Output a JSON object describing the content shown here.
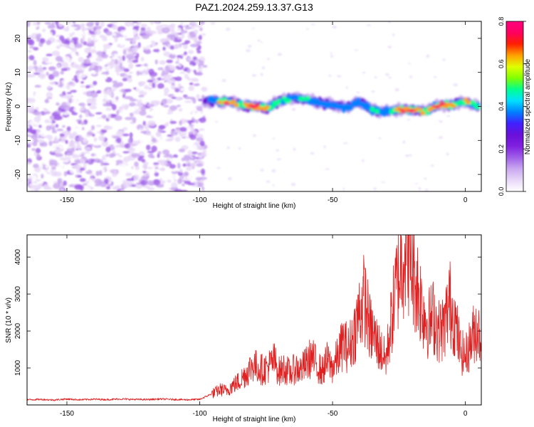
{
  "title": "PAZ1.2024.259.13.37.G13",
  "chart_data": [
    {
      "type": "heatmap",
      "xlabel": "Height of straight line (km)",
      "ylabel": "Frequency (Hz)",
      "xlim": [
        -165,
        6
      ],
      "ylim": [
        -25,
        25
      ],
      "x_ticks": [
        -150,
        -100,
        -50,
        0
      ],
      "x_tick_labels": [
        "-150",
        "-100",
        "-50",
        "0"
      ],
      "y_ticks": [
        -20,
        -10,
        0,
        10,
        20
      ],
      "y_tick_labels": [
        "-20",
        "-10",
        "0",
        "10",
        "20"
      ],
      "colorbar": {
        "label": "Normalized spectral amplitude",
        "range": [
          0,
          0.8
        ],
        "ticks": [
          0,
          0.2,
          0.4,
          0.6,
          0.8
        ],
        "tick_labels": [
          "0.0",
          "0.2",
          "0.4",
          "0.6",
          "0.8"
        ],
        "colormap": [
          "#ffffff",
          "#e8d8f8",
          "#c9a8f0",
          "#a060e8",
          "#8020e0",
          "#6a10d8",
          "#4020ff",
          "#0080ff",
          "#00e0ff",
          "#00ff90",
          "#80ff00",
          "#e0ff00",
          "#ffa000",
          "#ff2000",
          "#ff0060",
          "#ff0080"
        ]
      },
      "noise_region_x": [
        -165,
        -98
      ],
      "signal_track": {
        "x": [
          -98,
          -95,
          -90,
          -85,
          -80,
          -75,
          -70,
          -65,
          -60,
          -55,
          -50,
          -45,
          -40,
          -35,
          -30,
          -25,
          -20,
          -15,
          -10,
          -5,
          0,
          5
        ],
        "frequency_hz": [
          1.5,
          1.5,
          1.5,
          0.5,
          0.0,
          -0.5,
          1.5,
          2.5,
          2.0,
          1.0,
          0.5,
          -0.5,
          1.5,
          -1.0,
          -1.5,
          -1.0,
          -1.0,
          -1.5,
          0.5,
          0.5,
          1.5,
          0.0
        ],
        "peak_amplitude": [
          0.25,
          0.4,
          0.7,
          0.55,
          0.75,
          0.6,
          0.45,
          0.4,
          0.5,
          0.4,
          0.35,
          0.4,
          0.35,
          0.45,
          0.35,
          0.7,
          0.75,
          0.5,
          0.8,
          0.6,
          0.55,
          0.5
        ]
      }
    },
    {
      "type": "line",
      "xlabel": "Height of straight line (km)",
      "ylabel": "SNR (10 * v/v)",
      "xlim": [
        -165,
        6
      ],
      "ylim": [
        0,
        4600
      ],
      "x_ticks": [
        -150,
        -100,
        -50,
        0
      ],
      "x_tick_labels": [
        "-150",
        "-100",
        "-50",
        "0"
      ],
      "y_ticks": [
        1000,
        2000,
        3000,
        4000
      ],
      "y_tick_labels": [
        "1000",
        "2000",
        "3000",
        "4000"
      ],
      "color": "#e02020",
      "series": [
        {
          "x": [
            -165,
            -160,
            -155,
            -150,
            -145,
            -140,
            -135,
            -130,
            -125,
            -120,
            -115,
            -110,
            -105,
            -100,
            -97,
            -94,
            -92,
            -90,
            -88,
            -85,
            -82,
            -80,
            -78,
            -76,
            -74,
            -72,
            -70,
            -68,
            -66,
            -64,
            -62,
            -60,
            -58,
            -56,
            -54,
            -52,
            -50,
            -48,
            -46,
            -44,
            -42,
            -40,
            -38,
            -36,
            -34,
            -32,
            -30,
            -28,
            -26,
            -24,
            -22,
            -20,
            -18,
            -16,
            -14,
            -12,
            -10,
            -8,
            -6,
            -4,
            -2,
            0,
            2,
            4,
            6
          ],
          "y": [
            140,
            150,
            135,
            160,
            140,
            155,
            145,
            160,
            150,
            145,
            160,
            150,
            140,
            150,
            250,
            350,
            420,
            380,
            500,
            650,
            900,
            1100,
            1000,
            950,
            1050,
            1200,
            900,
            1000,
            850,
            1000,
            950,
            1100,
            1300,
            1100,
            900,
            1200,
            1000,
            1300,
            1700,
            1500,
            1900,
            2500,
            2900,
            2100,
            1800,
            1500,
            1200,
            2200,
            3200,
            3900,
            4500,
            3700,
            3200,
            2600,
            2200,
            2400,
            2000,
            2100,
            2800,
            2300,
            1500,
            1300,
            1700,
            2100,
            1800
          ]
        }
      ]
    }
  ]
}
